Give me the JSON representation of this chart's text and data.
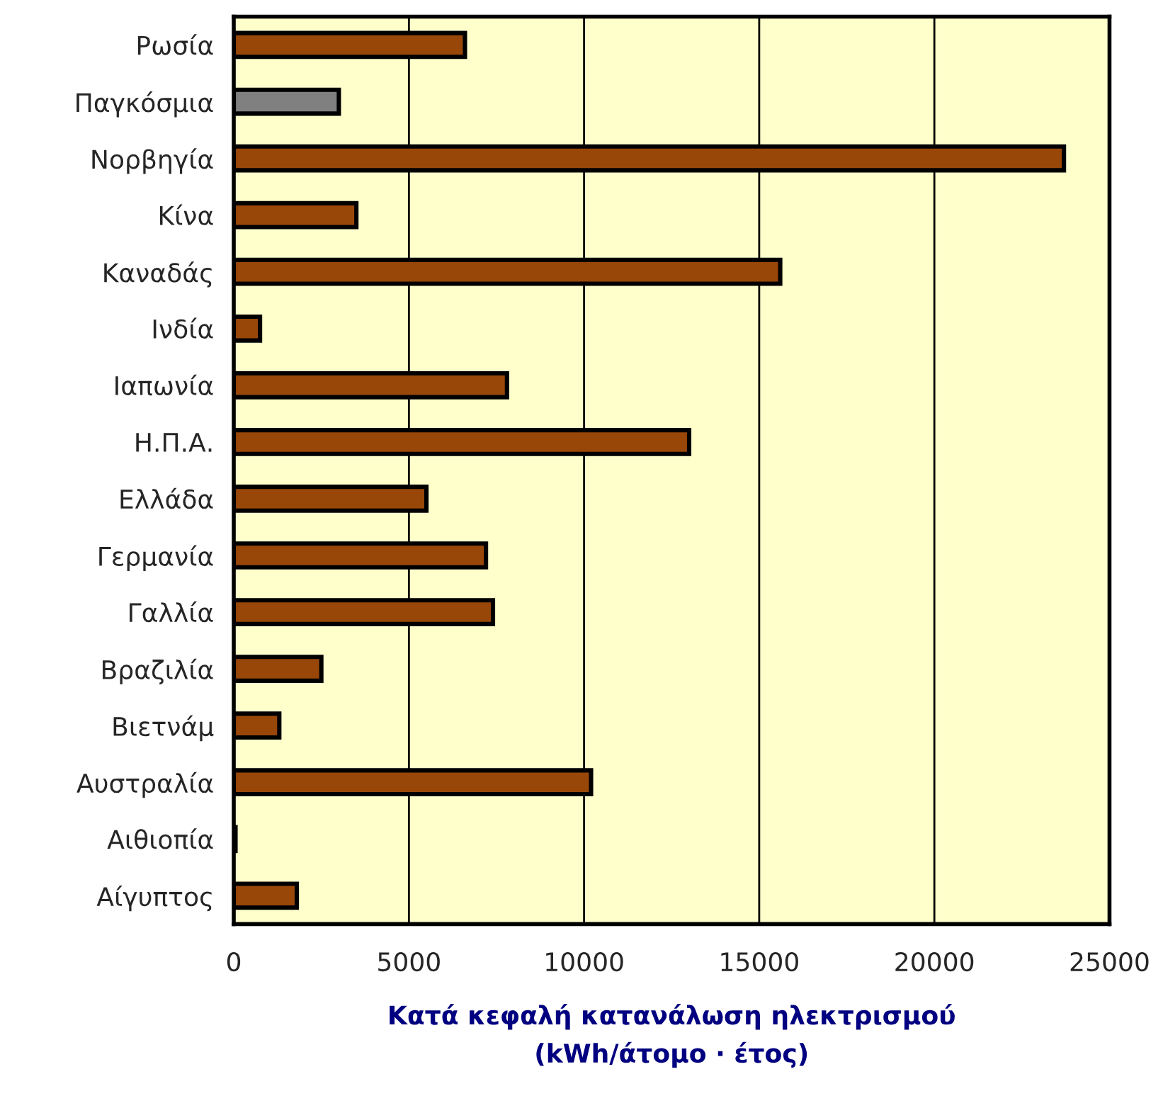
{
  "chart_data": {
    "type": "bar",
    "orientation": "horizontal",
    "categories": [
      "Ρωσία",
      "Παγκόσμια",
      "Νορβηγία",
      "Κίνα",
      "Καναδάς",
      "Ινδία",
      "Ιαπωνία",
      "Η.Π.Α.",
      "Ελλάδα",
      "Γερμανία",
      "Γαλλία",
      "Βραζιλία",
      "Βιετνάμ",
      "Αυστραλία",
      "Αιθιοπία",
      "Αίγυπτος"
    ],
    "values": [
      6600,
      3000,
      23700,
      3500,
      15600,
      750,
      7800,
      13000,
      5500,
      7200,
      7400,
      2500,
      1300,
      10200,
      50,
      1800
    ],
    "colors": [
      "#994709",
      "#808080",
      "#994709",
      "#994709",
      "#994709",
      "#994709",
      "#994709",
      "#994709",
      "#994709",
      "#994709",
      "#994709",
      "#994709",
      "#994709",
      "#994709",
      "#994709",
      "#994709"
    ],
    "xlabel": "Κατά κεφαλή κατανάλωση ηλεκτρισμού\n(kWh/άτομο · έτος)",
    "xlim": [
      0,
      25000
    ],
    "xticks": [
      0,
      5000,
      10000,
      15000,
      20000,
      25000
    ],
    "grid": "x",
    "legend": false
  }
}
